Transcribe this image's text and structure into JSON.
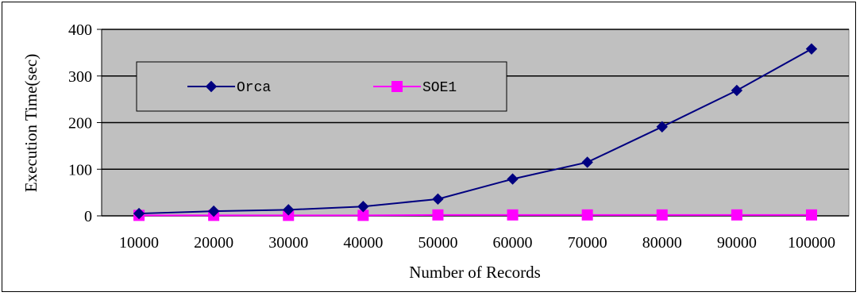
{
  "chart_data": {
    "type": "line",
    "title": "",
    "xlabel": "Number of Records",
    "ylabel": "Execution Time(sec)",
    "categories": [
      "10000",
      "20000",
      "30000",
      "40000",
      "50000",
      "60000",
      "70000",
      "80000",
      "90000",
      "100000"
    ],
    "yticks": [
      "0",
      "100",
      "200",
      "300",
      "400"
    ],
    "ylim": [
      0,
      400
    ],
    "grid": "horizontal",
    "legend_position": "top-left",
    "background_color": "#c0c0c0",
    "series": [
      {
        "name": "Orca",
        "color": "#000080",
        "marker": "diamond",
        "values": [
          5,
          10,
          13,
          20,
          36,
          79,
          115,
          191,
          269,
          358
        ]
      },
      {
        "name": "SOE1",
        "color": "#ff00ff",
        "marker": "square",
        "values": [
          1,
          1,
          1,
          1,
          2,
          2,
          2,
          2,
          2,
          2
        ]
      }
    ]
  }
}
